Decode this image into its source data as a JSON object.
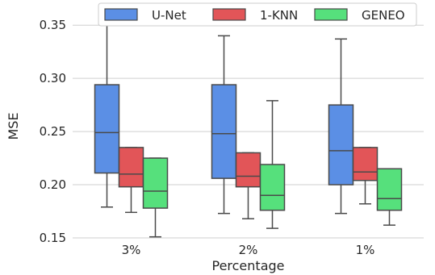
{
  "chart_data": {
    "type": "box",
    "xlabel": "Percentage",
    "ylabel": "MSE",
    "ylim": [
      0.15,
      0.36
    ],
    "yticks": [
      0.15,
      0.2,
      0.25,
      0.3,
      0.35
    ],
    "ytick_labels": [
      "0.15",
      "0.20",
      "0.25",
      "0.30",
      "0.35"
    ],
    "categories": [
      "3%",
      "2%",
      "1%"
    ],
    "grid": "horizontal",
    "legend_position": "top",
    "series": [
      {
        "name": "U-Net",
        "color": "#5b8fe5",
        "boxes": [
          {
            "whislo": 0.179,
            "q1": 0.211,
            "med": 0.249,
            "q3": 0.294,
            "whishi": 0.352
          },
          {
            "whislo": 0.173,
            "q1": 0.206,
            "med": 0.248,
            "q3": 0.294,
            "whishi": 0.34
          },
          {
            "whislo": 0.173,
            "q1": 0.2,
            "med": 0.232,
            "q3": 0.275,
            "whishi": 0.337
          }
        ]
      },
      {
        "name": "1-KNN",
        "color": "#e25558",
        "boxes": [
          {
            "whislo": 0.174,
            "q1": 0.198,
            "med": 0.21,
            "q3": 0.235,
            "whishi": 0.235
          },
          {
            "whislo": 0.168,
            "q1": 0.198,
            "med": 0.208,
            "q3": 0.23,
            "whishi": 0.23
          },
          {
            "whislo": 0.182,
            "q1": 0.204,
            "med": 0.212,
            "q3": 0.235,
            "whishi": 0.235
          }
        ]
      },
      {
        "name": "GENEO",
        "color": "#56e07c",
        "boxes": [
          {
            "whislo": 0.151,
            "q1": 0.178,
            "med": 0.194,
            "q3": 0.225,
            "whishi": 0.225
          },
          {
            "whislo": 0.159,
            "q1": 0.176,
            "med": 0.19,
            "q3": 0.219,
            "whishi": 0.279
          },
          {
            "whislo": 0.162,
            "q1": 0.176,
            "med": 0.187,
            "q3": 0.215,
            "whishi": 0.215
          }
        ]
      }
    ]
  }
}
